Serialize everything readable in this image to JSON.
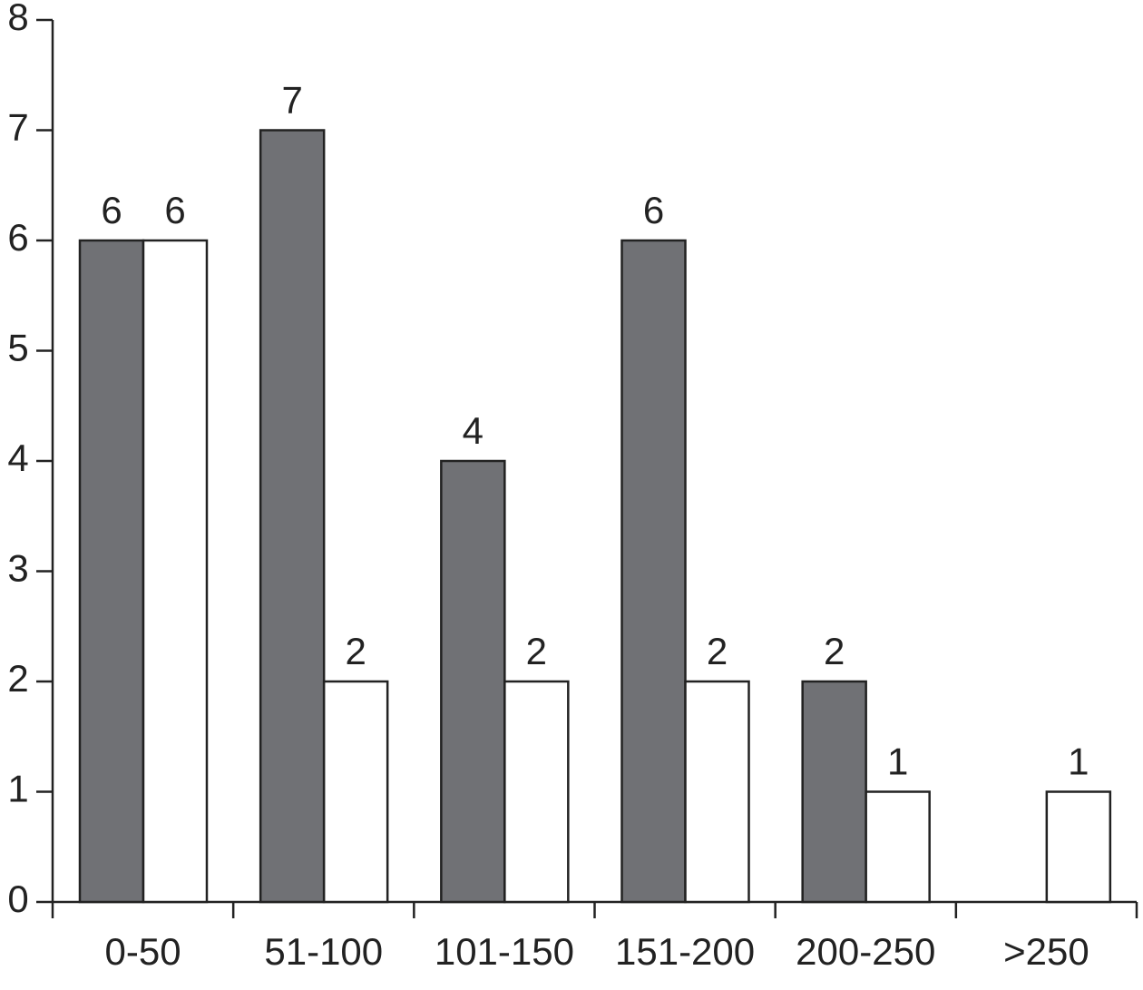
{
  "chart_data": {
    "type": "bar",
    "categories": [
      "0-50",
      "51-100",
      "101-150",
      "151-200",
      "200-250",
      ">250"
    ],
    "series": [
      {
        "color": "#707175",
        "values": [
          6,
          7,
          4,
          6,
          2,
          null
        ]
      },
      {
        "color": "#ffffff",
        "values": [
          6,
          2,
          2,
          2,
          1,
          1
        ]
      }
    ],
    "ylim": [
      0,
      8
    ],
    "yticks": [
      0,
      1,
      2,
      3,
      4,
      5,
      6,
      7,
      8
    ],
    "grid": false
  }
}
